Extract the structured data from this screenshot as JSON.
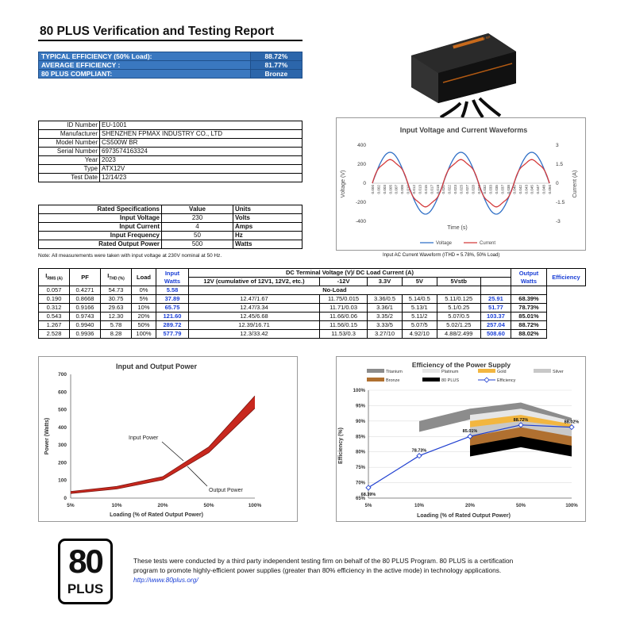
{
  "report_title": "80 PLUS Verification and Testing Report",
  "summary": [
    {
      "label": "TYPICAL EFFICIENCY (50% Load):",
      "value": "88.72%"
    },
    {
      "label": "AVERAGE EFFICIENCY :",
      "value": "81.77%"
    },
    {
      "label": "80 PLUS COMPLIANT:",
      "value": "Bronze"
    }
  ],
  "info": [
    {
      "label": "ID Number",
      "value": "EU-1001"
    },
    {
      "label": "Manufacturer",
      "value": "SHENZHEN FPMAX INDUSTRY CO., LTD"
    },
    {
      "label": "Model Number",
      "value": "CS500W BR"
    },
    {
      "label": "Serial Number",
      "value": "6973574163324"
    },
    {
      "label": "Year",
      "value": "2023"
    },
    {
      "label": "Type",
      "value": "ATX12V"
    },
    {
      "label": "Test Date",
      "value": "12/14/23"
    }
  ],
  "spec": {
    "headers": [
      "Rated Specifications",
      "Value",
      "Units"
    ],
    "rows": [
      {
        "label": "Input Voltage",
        "value": "230",
        "unit": "Volts"
      },
      {
        "label": "Input Current",
        "value": "4",
        "unit": "Amps"
      },
      {
        "label": "Input Frequency",
        "value": "50",
        "unit": "Hz"
      },
      {
        "label": "Rated Output Power",
        "value": "500",
        "unit": "Watts"
      }
    ]
  },
  "note": "Note: All measurements were taken with input voltage at 230V nominal at 50 Hz.",
  "data_table": {
    "h_irms": "I",
    "h_irms_sub": "RMS (A)",
    "h_pf": "PF",
    "h_ithd": "I",
    "h_ithd_sub": "THD (%)",
    "h_load": "Load",
    "h_input": "Input Watts",
    "h_dc": "DC Terminal Voltage (V)/ DC Load Current (A)",
    "h_12v": "12V (cumulative of 12V1, 12V2, etc.)",
    "h_m12v": "-12V",
    "h_33v": "3.3V",
    "h_5v": "5V",
    "h_5vsb": "5Vstb",
    "h_output": "Output Watts",
    "h_eff": "Efficiency",
    "noload": "No-Load",
    "row0": [
      "0.057",
      "0.4271",
      "54.73",
      "0%",
      "5.58"
    ],
    "rows": [
      [
        "0.190",
        "0.8668",
        "30.75",
        "5%",
        "37.89",
        "12.47/1.67",
        "11.75/0.015",
        "3.36/0.5",
        "5.14/0.5",
        "5.11/0.125",
        "25.91",
        "68.39%"
      ],
      [
        "0.312",
        "0.9166",
        "29.63",
        "10%",
        "65.75",
        "12.47/3.34",
        "11.71/0.03",
        "3.36/1",
        "5.13/1",
        "5.1/0.25",
        "51.77",
        "78.73%"
      ],
      [
        "0.543",
        "0.9743",
        "12.30",
        "20%",
        "121.60",
        "12.45/6.68",
        "11.66/0.06",
        "3.35/2",
        "5.11/2",
        "5.07/0.5",
        "103.37",
        "85.01%"
      ],
      [
        "1.267",
        "0.9940",
        "5.78",
        "50%",
        "289.72",
        "12.39/16.71",
        "11.56/0.15",
        "3.33/5",
        "5.07/5",
        "5.02/1.25",
        "257.04",
        "88.72%"
      ],
      [
        "2.528",
        "0.9936",
        "8.28",
        "100%",
        "577.79",
        "12.3/33.42",
        "11.53/0.3",
        "3.27/10",
        "4.92/10",
        "4.88/2.499",
        "508.60",
        "88.02%"
      ]
    ]
  },
  "colors": {
    "accent": "#2e6db4",
    "blue_text": "#1a3fd6",
    "voltage": "#2f6fc6",
    "current": "#d43a3a",
    "power_fill": "#c8281e"
  },
  "chart_data": [
    {
      "type": "line",
      "title": "Input Voltage and Current Waveforms",
      "xlabel": "Time (s)",
      "ylabel": "Voltage (V)",
      "y2label": "Current (A)",
      "ylim": [
        -400,
        400
      ],
      "y2lim": [
        -3,
        3
      ],
      "yticks": [
        "400",
        "200",
        "0",
        "-200",
        "-400"
      ],
      "y2ticks": [
        "3",
        "1.5",
        "0",
        "-1.5",
        "-3"
      ],
      "xticks": [
        "0.000",
        "0.002",
        "0.003",
        "0.005",
        "0.007",
        "0.008",
        "0.010",
        "0.012",
        "0.013",
        "0.015",
        "0.017",
        "0.018",
        "0.020",
        "0.022",
        "0.023",
        "0.025",
        "0.027",
        "0.028",
        "0.030",
        "0.032",
        "0.033",
        "0.035",
        "0.037",
        "0.038",
        "0.040",
        "0.042",
        "0.043",
        "0.045",
        "0.047",
        "0.048",
        "0.050"
      ],
      "series": [
        {
          "name": "Voltage",
          "amplitude": 325,
          "frequency_hz": 50
        },
        {
          "name": "Current",
          "amplitude": 1.9,
          "frequency_hz": 50
        }
      ],
      "caption": "Input AC Current Waveform (ITHD = 5.78%, 50% Load)"
    },
    {
      "type": "area",
      "title": "Input and Output Power",
      "xlabel": "Loading (% of Rated Output Power)",
      "ylabel": "Power (Watts)",
      "categories": [
        "5%",
        "10%",
        "20%",
        "50%",
        "100%"
      ],
      "ylim": [
        0,
        700
      ],
      "yticks": [
        "0",
        "100",
        "200",
        "300",
        "400",
        "500",
        "600",
        "700"
      ],
      "series": [
        {
          "name": "Input Power",
          "values": [
            37.89,
            65.75,
            121.6,
            289.72,
            577.79
          ]
        },
        {
          "name": "Output Power",
          "values": [
            25.91,
            51.77,
            103.37,
            257.04,
            508.6
          ]
        }
      ],
      "annotations": [
        "Input Power",
        "Output Power"
      ]
    },
    {
      "type": "line",
      "title": "Efficiency of the Power Supply",
      "xlabel": "Loading (% of Rated Output Power)",
      "ylabel": "Efficiency (%)",
      "categories": [
        "5%",
        "10%",
        "20%",
        "50%",
        "100%"
      ],
      "ylim": [
        65,
        100
      ],
      "yticks": [
        "100%",
        "95%",
        "90%",
        "85%",
        "80%",
        "75%",
        "70%",
        "65%"
      ],
      "legend": [
        "Titanium",
        "Platinum",
        "Gold",
        "Silver",
        "Bronze",
        "80 PLUS",
        "Efficiency"
      ],
      "legend_colors": [
        "#8c8c8c",
        "#e6e6e6",
        "#f2b640",
        "#c8c8c8",
        "#b07030",
        "#000000",
        "#1f3fd0"
      ],
      "levels": {
        "Titanium": [
          null,
          90,
          94,
          96,
          91
        ],
        "Platinum": [
          null,
          null,
          92,
          94,
          90
        ],
        "Gold": [
          null,
          null,
          90,
          92,
          89
        ],
        "Silver": [
          null,
          null,
          88,
          90,
          88
        ],
        "Bronze": [
          null,
          null,
          85,
          88,
          85
        ],
        "80 PLUS": [
          null,
          null,
          82,
          85,
          82
        ]
      },
      "series": [
        {
          "name": "Efficiency",
          "values": [
            68.39,
            78.73,
            85.01,
            88.72,
            88.02
          ]
        }
      ],
      "data_labels": [
        "68.39%",
        "78.73%",
        "85.01%",
        "88.72%",
        "88.02%"
      ]
    }
  ],
  "logo": {
    "number": "80",
    "word": "PLUS"
  },
  "footer": {
    "text": "These tests were conducted by a third party independent testing firm on behalf of the 80 PLUS Program. 80 PLUS is a certification program to promote highly-efficient power supplies (greater than 80% efficiency in the active mode) in technology applications.",
    "link": "http://www.80plus.org/"
  },
  "product_brand": "CS500W BR"
}
